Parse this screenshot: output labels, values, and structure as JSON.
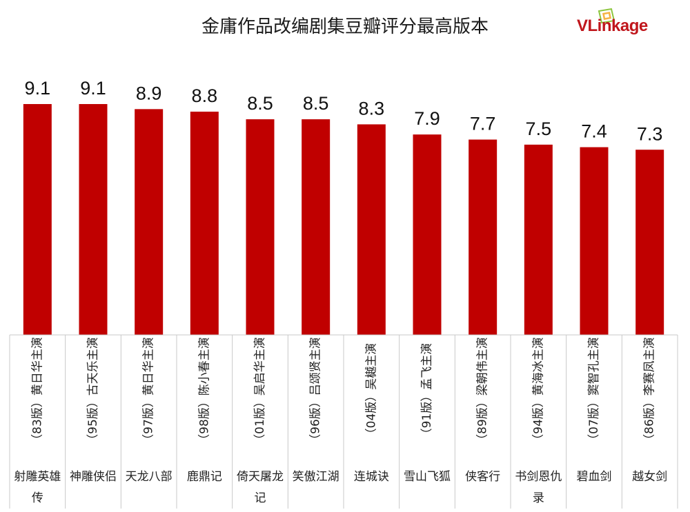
{
  "brand": {
    "name": "VLinkage"
  },
  "colors": {
    "bar": "#c00000",
    "grid": "#c8c8c8",
    "logo": "#c0161c"
  },
  "chart_data": {
    "type": "bar",
    "title": "金庸作品改编剧集豆瓣评分最高版本",
    "xlabel": "",
    "ylabel": "",
    "grid": false,
    "legend": "none",
    "categories": [
      "射雕英雄传",
      "神雕侠侣",
      "天龙八部",
      "鹿鼎记",
      "倚天屠龙记",
      "笑傲江湖",
      "连城诀",
      "雪山飞狐",
      "侠客行",
      "书剑恩仇录",
      "碧血剑",
      "越女剑"
    ],
    "versions": [
      "（83版）黄日华主演",
      "（95版）古天乐主演",
      "（97版）黄日华主演",
      "（98版）陈小春主演",
      "（01版）吴启华主演",
      "（96版）吕颂贤主演",
      "（04版）吴樾主演",
      "（91版）孟飞主演",
      "（89版）梁朝伟主演",
      "（94版）黄海冰主演",
      "（07版）窦智孔主演",
      "（86版）李赛凤主演"
    ],
    "values": [
      9.1,
      9.1,
      8.9,
      8.8,
      8.5,
      8.5,
      8.3,
      7.9,
      7.7,
      7.5,
      7.4,
      7.3
    ],
    "value_labels": [
      "9.1",
      "9.1",
      "8.9",
      "8.8",
      "8.5",
      "8.5",
      "8.3",
      "7.9",
      "7.7",
      "7.5",
      "7.4",
      "7.3"
    ],
    "ylim": [
      0,
      9.1
    ]
  }
}
